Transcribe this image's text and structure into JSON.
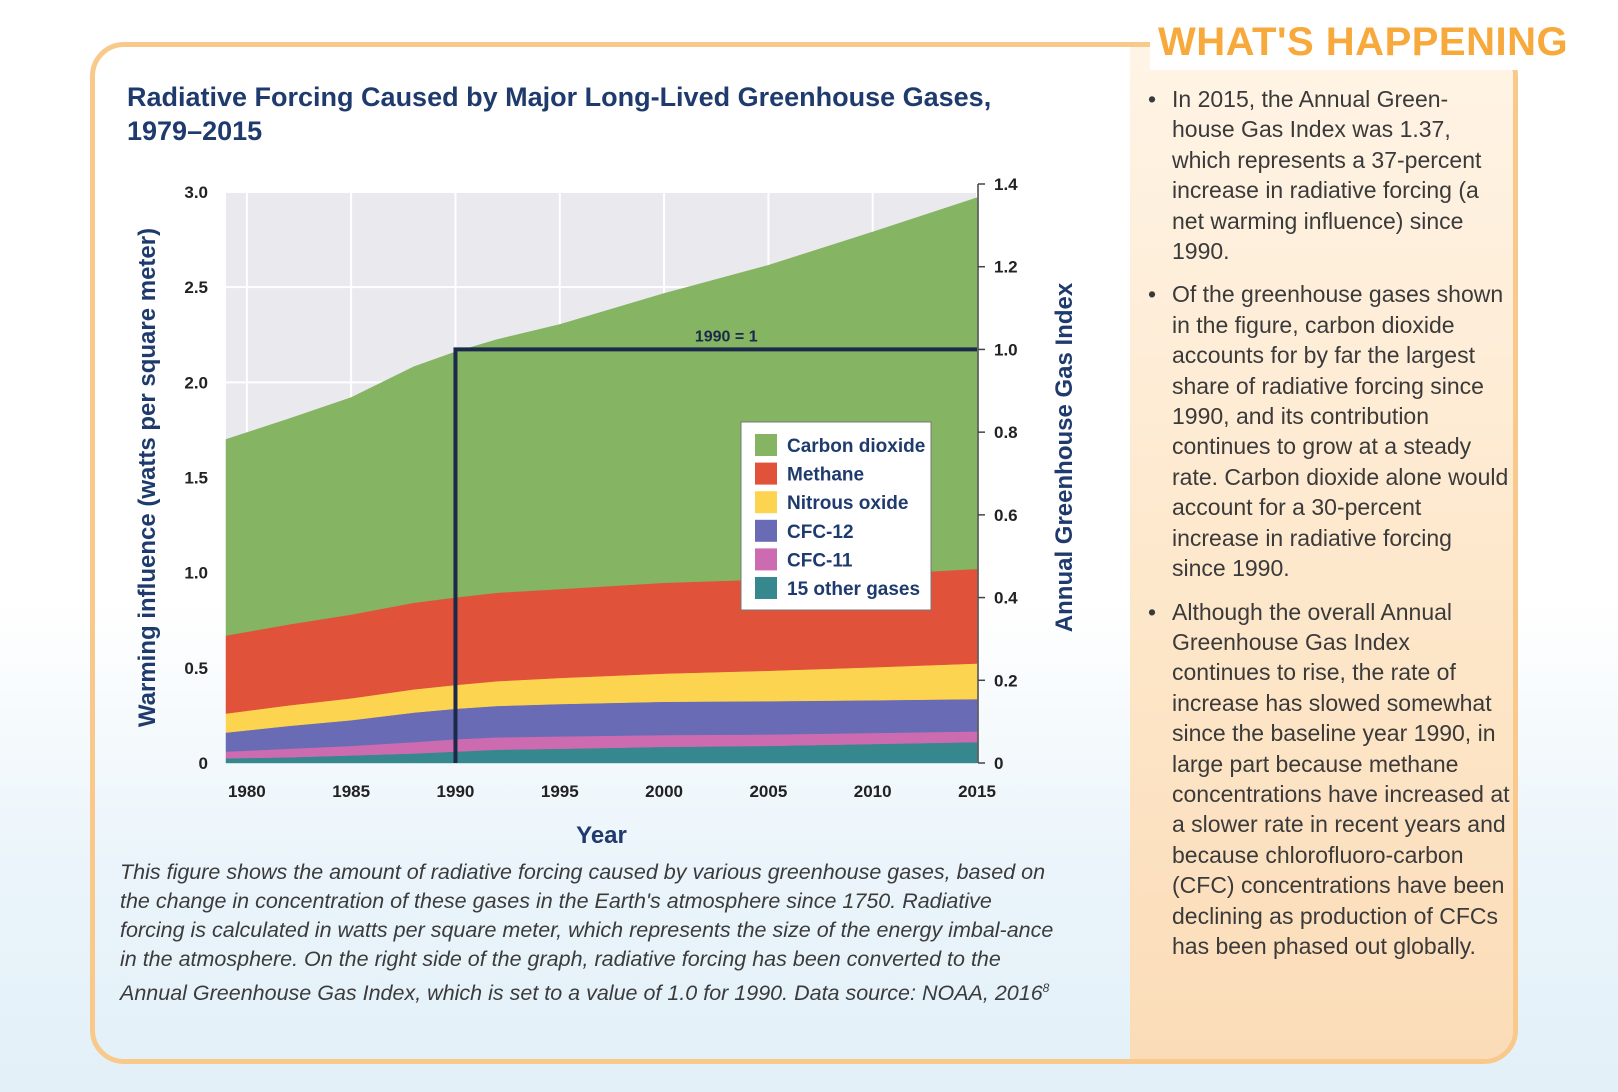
{
  "sidebar": {
    "heading": "WHAT'S HAPPENING",
    "bullets": [
      "In 2015, the Annual Green-house Gas Index was 1.37, which represents a 37-percent increase in radiative forcing (a net warming influence) since 1990.",
      "Of the greenhouse gases shown in the figure, carbon dioxide accounts for by far the largest share of radiative forcing since 1990, and its contribution continues to grow at a steady rate. Carbon dioxide alone would account for a 30-percent increase in radiative forcing since 1990.",
      "Although the overall Annual Greenhouse Gas Index continues to rise, the rate of increase has slowed somewhat since the baseline year 1990, in large part because methane concentrations have increased at a slower rate in recent years and because chlorofluoro-carbon (CFC) concentrations have been declining as production of CFCs has been phased out globally."
    ]
  },
  "caption": {
    "text": "This figure shows the amount of radiative forcing caused by various greenhouse gases, based on the change in concentration of these gases in the Earth's atmosphere since 1750. Radiative forcing is calculated in watts per square meter, which represents the size of the energy imbal-ance in the atmosphere. On the right side of the graph, radiative forcing has been converted to the Annual Greenhouse Gas Index, which is set to a value of 1.0 for 1990. Data source: NOAA, 2016",
    "footnote": "8"
  },
  "chart_data": {
    "type": "area",
    "stacked": true,
    "title": "Radiative Forcing Caused by Major Long-Lived Greenhouse Gases, 1979–2015",
    "xlabel": "Year",
    "ylabel": "Warming influence (watts per square meter)",
    "y2label": "Annual Greenhouse Gas Index",
    "xlim": [
      1979,
      2015
    ],
    "ylim": [
      0,
      3.0
    ],
    "y2lim": [
      0,
      1.4
    ],
    "x_ticks": [
      1980,
      1985,
      1990,
      1995,
      2000,
      2005,
      2010,
      2015
    ],
    "y_ticks": [
      0,
      0.5,
      1.0,
      1.5,
      2.0,
      2.5,
      3.0
    ],
    "y_tick_labels": [
      "0",
      "0.5",
      "1.0",
      "1.5",
      "2.0",
      "2.5",
      "3.0"
    ],
    "y2_ticks": [
      0,
      0.2,
      0.4,
      0.6,
      0.8,
      1.0,
      1.2,
      1.4
    ],
    "y2_tick_labels": [
      "0",
      "0.2",
      "0.4",
      "0.6",
      "0.8",
      "1.0",
      "1.2",
      "1.4"
    ],
    "grid": true,
    "legend_position": "center-right",
    "annotation": {
      "label": "1990 = 1",
      "x": 1990,
      "index_value": 1.0
    },
    "x": [
      1979,
      1982,
      1985,
      1988,
      1990,
      1992,
      1995,
      2000,
      2005,
      2010,
      2015
    ],
    "series": [
      {
        "name": "15 other gases",
        "color": "#37878f",
        "values": [
          0.025,
          0.03,
          0.04,
          0.05,
          0.06,
          0.07,
          0.075,
          0.085,
          0.09,
          0.1,
          0.11
        ]
      },
      {
        "name": "CFC-11",
        "color": "#cc6bb0",
        "values": [
          0.035,
          0.045,
          0.05,
          0.06,
          0.065,
          0.065,
          0.065,
          0.062,
          0.06,
          0.058,
          0.056
        ]
      },
      {
        "name": "CFC-12",
        "color": "#6a6bb5",
        "values": [
          0.1,
          0.12,
          0.135,
          0.155,
          0.16,
          0.165,
          0.17,
          0.175,
          0.175,
          0.172,
          0.17
        ]
      },
      {
        "name": "Nitrous oxide",
        "color": "#fdd44f",
        "values": [
          0.1,
          0.108,
          0.115,
          0.122,
          0.125,
          0.13,
          0.137,
          0.148,
          0.16,
          0.173,
          0.187
        ]
      },
      {
        "name": "Methane",
        "color": "#e0523a",
        "values": [
          0.41,
          0.425,
          0.44,
          0.455,
          0.46,
          0.465,
          0.467,
          0.477,
          0.48,
          0.487,
          0.497
        ]
      },
      {
        "name": "Carbon dioxide",
        "color": "#85b462",
        "values": [
          1.03,
          1.08,
          1.14,
          1.24,
          1.29,
          1.33,
          1.39,
          1.52,
          1.65,
          1.8,
          1.95
        ]
      }
    ]
  }
}
